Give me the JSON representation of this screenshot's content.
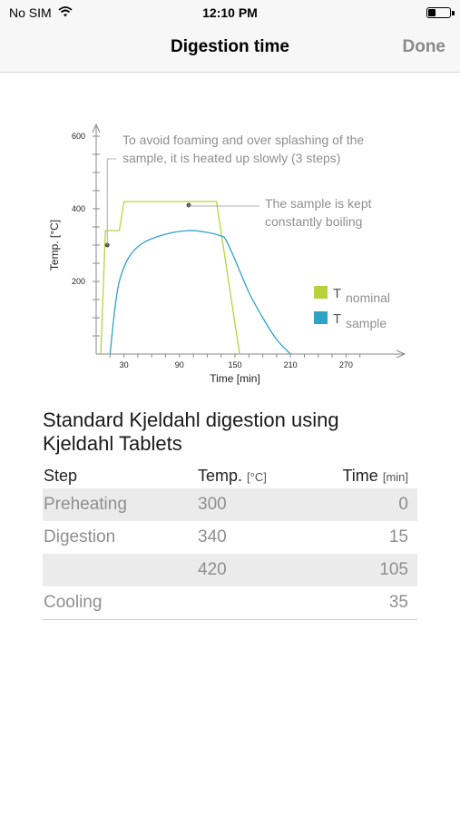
{
  "status_bar": {
    "carrier": "No SIM",
    "time": "12:10 PM",
    "battery_level": 0.35
  },
  "nav": {
    "title": "Digestion time",
    "done_label": "Done"
  },
  "chart_data": {
    "type": "line",
    "xlabel": "Time [min]",
    "ylabel": "Temp. [°C]",
    "x_ticks": [
      "30",
      "90",
      "150",
      "210",
      "270"
    ],
    "y_ticks": [
      "200",
      "400",
      "600"
    ],
    "xlim": [
      0,
      300
    ],
    "ylim": [
      0,
      600
    ],
    "legend_placement": "right",
    "colors": {
      "nominal": "#b9d23c",
      "sample": "#2ea3c6",
      "axis": "#8a8a8a"
    },
    "series": [
      {
        "key": "nominal",
        "x": [
          5,
          10,
          10,
          25,
          30,
          130,
          155
        ],
        "y": [
          0,
          340,
          340,
          340,
          420,
          420,
          0
        ]
      },
      {
        "key": "sample",
        "x": [
          15,
          20,
          25,
          35,
          50,
          75,
          100,
          120,
          135,
          140,
          150,
          165,
          180,
          195,
          210
        ],
        "y": [
          0,
          120,
          200,
          265,
          305,
          330,
          340,
          335,
          325,
          315,
          260,
          170,
          100,
          40,
          0
        ]
      }
    ],
    "legend": [
      {
        "symbol": "T",
        "sub": "nominal",
        "color": "#b9d23c"
      },
      {
        "symbol": "T",
        "sub": "sample",
        "color": "#2ea3c6"
      }
    ],
    "annotations": [
      {
        "lines": [
          "To avoid foaming and over splashing of the",
          "sample, it is heated up slowly (3 steps)"
        ],
        "point": [
          12,
          300
        ]
      },
      {
        "lines": [
          "The sample is kept",
          "constantly boiling"
        ],
        "point": [
          100,
          410
        ]
      }
    ]
  },
  "section": {
    "title_line1": "Standard Kjeldahl digestion using",
    "title_line2": "Kjeldahl Tablets"
  },
  "table": {
    "headers": {
      "step": "Step",
      "temp": "Temp.",
      "temp_unit": "[°C]",
      "time": "Time",
      "time_unit": "[min]"
    },
    "rows": [
      {
        "step": "Preheating",
        "temp": "300",
        "time": "0"
      },
      {
        "step": "Digestion",
        "temp": "340",
        "time": "15"
      },
      {
        "step": "",
        "temp": "420",
        "time": "105"
      },
      {
        "step": "Cooling",
        "temp": "",
        "time": "35"
      }
    ]
  }
}
